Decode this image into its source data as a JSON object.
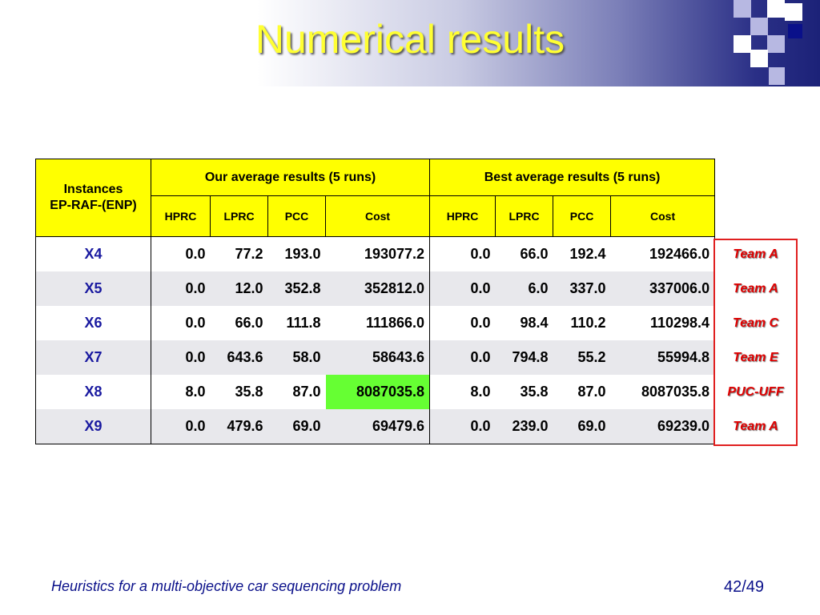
{
  "title": "Numerical results",
  "table": {
    "instances_header_line1": "Instances",
    "instances_header_line2": "EP-RAF-(ENP)",
    "our_group": "Our average results (5 runs)",
    "best_group": "Best average results (5 runs)",
    "sub_headers": [
      "HPRC",
      "LPRC",
      "PCC",
      "Cost",
      "HPRC",
      "LPRC",
      "PCC",
      "Cost"
    ],
    "rows": [
      {
        "instance": "X4",
        "our": [
          "0.0",
          "77.2",
          "193.0",
          "193077.2"
        ],
        "best": [
          "0.0",
          "66.0",
          "192.4",
          "192466.0"
        ],
        "team": "Team A"
      },
      {
        "instance": "X5",
        "our": [
          "0.0",
          "12.0",
          "352.8",
          "352812.0"
        ],
        "best": [
          "0.0",
          "6.0",
          "337.0",
          "337006.0"
        ],
        "team": "Team A"
      },
      {
        "instance": "X6",
        "our": [
          "0.0",
          "66.0",
          "111.8",
          "111866.0"
        ],
        "best": [
          "0.0",
          "98.4",
          "110.2",
          "110298.4"
        ],
        "team": "Team C"
      },
      {
        "instance": "X7",
        "our": [
          "0.0",
          "643.6",
          "58.0",
          "58643.6"
        ],
        "best": [
          "0.0",
          "794.8",
          "55.2",
          "55994.8"
        ],
        "team": "Team E"
      },
      {
        "instance": "X8",
        "our": [
          "8.0",
          "35.8",
          "87.0",
          "8087035.8"
        ],
        "best": [
          "8.0",
          "35.8",
          "87.0",
          "8087035.8"
        ],
        "team": "PUC-UFF"
      },
      {
        "instance": "X9",
        "our": [
          "0.0",
          "479.6",
          "69.0",
          "69479.6"
        ],
        "best": [
          "0.0",
          "239.0",
          "69.0",
          "69239.0"
        ],
        "team": "Team A"
      }
    ]
  },
  "colors": {
    "title": "#ffff33",
    "header_bg": "#ffff00",
    "highlight": "#66ff33",
    "team_text": "#e00000",
    "footer_text": "#0a108a"
  },
  "footer": {
    "left": "Heuristics for a multi-objective car sequencing problem",
    "right": "42/49"
  }
}
